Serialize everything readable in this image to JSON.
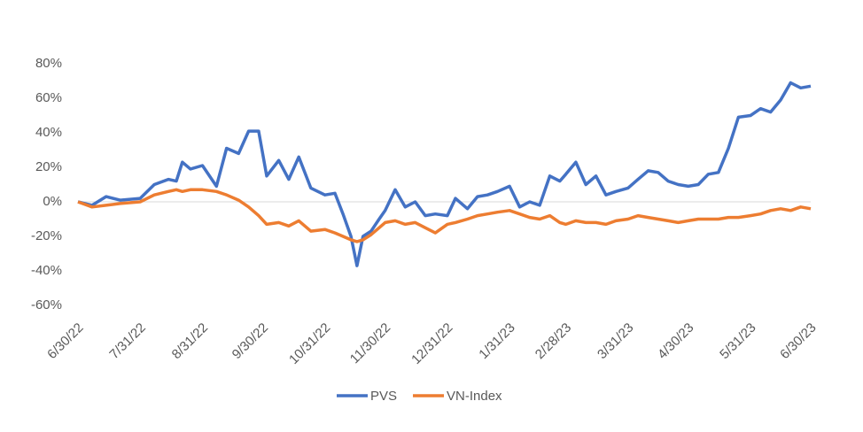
{
  "chart_data": {
    "type": "line",
    "x": [
      "6/30/22",
      "7/7/22",
      "7/14/22",
      "7/21/22",
      "7/31/22",
      "8/7/22",
      "8/14/22",
      "8/18/22",
      "8/21/22",
      "8/25/22",
      "8/31/22",
      "9/7/22",
      "9/12/22",
      "9/18/22",
      "9/23/22",
      "9/28/22",
      "10/2/22",
      "10/8/22",
      "10/13/22",
      "10/18/22",
      "10/24/22",
      "10/31/22",
      "11/5/22",
      "11/9/22",
      "11/13/22",
      "11/16/22",
      "11/19/22",
      "11/23/22",
      "11/27/22",
      "11/30/22",
      "12/5/22",
      "12/10/22",
      "12/15/22",
      "12/20/22",
      "12/25/22",
      "12/31/22",
      "1/4/23",
      "1/10/23",
      "1/15/23",
      "1/20/23",
      "1/25/23",
      "1/31/23",
      "2/5/23",
      "2/10/23",
      "2/15/23",
      "2/20/23",
      "2/25/23",
      "2/28/23",
      "3/5/23",
      "3/10/23",
      "3/15/23",
      "3/20/23",
      "3/25/23",
      "3/31/23",
      "4/5/23",
      "4/10/23",
      "4/15/23",
      "4/20/23",
      "4/25/23",
      "4/30/23",
      "5/5/23",
      "5/10/23",
      "5/15/23",
      "5/20/23",
      "5/25/23",
      "5/31/23",
      "6/5/23",
      "6/10/23",
      "6/15/23",
      "6/20/23",
      "6/25/23",
      "6/30/23"
    ],
    "series": [
      {
        "name": "PVS",
        "color": "#4472c4",
        "values": [
          0,
          -2,
          3,
          1,
          2,
          10,
          13,
          12,
          23,
          19,
          21,
          9,
          31,
          28,
          41,
          41,
          15,
          24,
          13,
          26,
          8,
          4,
          5,
          -7,
          -20,
          -37,
          -20,
          -17,
          -10,
          -5,
          7,
          -3,
          0,
          -8,
          -7,
          -8,
          2,
          -4,
          3,
          4,
          6,
          9,
          -3,
          0,
          -2,
          15,
          12,
          16,
          23,
          10,
          15,
          4,
          6,
          8,
          13,
          18,
          17,
          12,
          10,
          9,
          10,
          16,
          17,
          31,
          49,
          50,
          54,
          52,
          59,
          69,
          66,
          67
        ]
      },
      {
        "name": "VN-Index",
        "color": "#ed7d31",
        "values": [
          0,
          -3,
          -2,
          -1,
          0,
          4,
          6,
          7,
          6,
          7,
          7,
          6,
          4,
          1,
          -3,
          -8,
          -13,
          -12,
          -14,
          -11,
          -17,
          -16,
          -18,
          -20,
          -22,
          -23,
          -22,
          -19,
          -15,
          -12,
          -11,
          -13,
          -12,
          -15,
          -18,
          -13,
          -12,
          -10,
          -8,
          -7,
          -6,
          -5,
          -7,
          -9,
          -10,
          -8,
          -12,
          -13,
          -11,
          -12,
          -12,
          -13,
          -11,
          -10,
          -8,
          -9,
          -10,
          -11,
          -12,
          -11,
          -10,
          -10,
          -10,
          -9,
          -9,
          -8,
          -7,
          -5,
          -4,
          -5,
          -3,
          -4
        ]
      }
    ],
    "xlim": [
      "6/30/22",
      "6/30/23"
    ],
    "xticks": [
      "6/30/22",
      "7/31/22",
      "8/31/22",
      "9/30/22",
      "10/31/22",
      "11/30/22",
      "12/31/22",
      "1/31/23",
      "2/28/23",
      "3/31/23",
      "4/30/23",
      "5/31/23",
      "6/30/23"
    ],
    "ylim": [
      -60,
      80
    ],
    "yticks": [
      {
        "value": -60,
        "label": "-60%"
      },
      {
        "value": -40,
        "label": "-40%"
      },
      {
        "value": -20,
        "label": "-20%"
      },
      {
        "value": 0,
        "label": "0%"
      },
      {
        "value": 20,
        "label": "20%"
      },
      {
        "value": 40,
        "label": "40%"
      },
      {
        "value": 60,
        "label": "60%"
      },
      {
        "value": 80,
        "label": "80%"
      }
    ],
    "legend": "bottom"
  }
}
